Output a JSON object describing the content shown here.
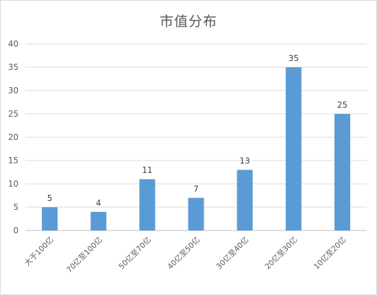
{
  "chart_data": {
    "type": "bar",
    "title": "市值分布",
    "xlabel": "",
    "ylabel": "",
    "categories": [
      "大于100亿",
      "70亿至100亿",
      "50亿至70亿",
      "40亿至50亿",
      "30亿至40亿",
      "20亿至30亿",
      "10亿至20亿"
    ],
    "values": [
      5,
      4,
      11,
      7,
      13,
      35,
      25
    ],
    "ylim": [
      0,
      40
    ],
    "yticks": [
      0,
      5,
      10,
      15,
      20,
      25,
      30,
      35,
      40
    ],
    "grid": true,
    "legend": "none",
    "colors": {
      "bar": "#5b9bd5",
      "grid": "#d9d9d9",
      "axis": "#bfbfbf"
    }
  }
}
